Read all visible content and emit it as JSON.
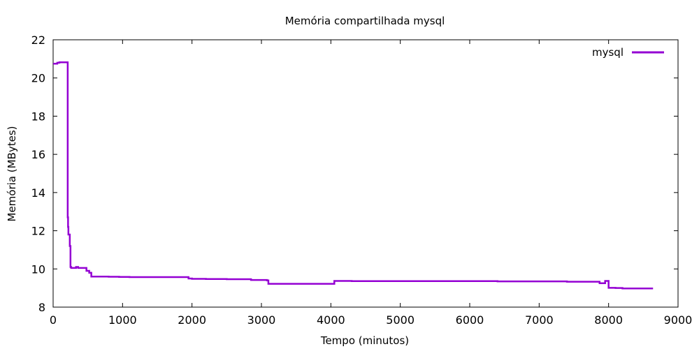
{
  "chart_data": {
    "type": "line",
    "title": "Memória compartilhada mysql",
    "xlabel": "Tempo (minutos)",
    "ylabel": "Memória (MBytes)",
    "xlim": [
      0,
      9000
    ],
    "ylim": [
      8,
      22
    ],
    "xticks": [
      0,
      1000,
      2000,
      3000,
      4000,
      5000,
      6000,
      7000,
      8000,
      9000
    ],
    "yticks": [
      8,
      10,
      12,
      14,
      16,
      18,
      20,
      22
    ],
    "grid": false,
    "legend_position": "top-right",
    "series": [
      {
        "name": "mysql",
        "color": "#9400d3",
        "step": true,
        "x": [
          0,
          30,
          60,
          90,
          120,
          150,
          200,
          210,
          215,
          220,
          225,
          230,
          240,
          250,
          260,
          270,
          330,
          360,
          400,
          480,
          520,
          550,
          600,
          800,
          950,
          1100,
          1500,
          1900,
          1950,
          2000,
          2200,
          2500,
          2800,
          2850,
          3080,
          3100,
          3500,
          4000,
          4050,
          4300,
          5000,
          6000,
          6400,
          7000,
          7350,
          7400,
          7800,
          7870,
          7950,
          8000,
          8100,
          8200,
          8300,
          8640
        ],
        "y": [
          20.75,
          20.75,
          20.8,
          20.82,
          20.82,
          20.82,
          20.82,
          12.7,
          12.2,
          11.8,
          11.8,
          11.8,
          11.2,
          10.1,
          10.05,
          10.05,
          10.1,
          10.05,
          10.05,
          9.9,
          9.8,
          9.6,
          9.6,
          9.59,
          9.58,
          9.57,
          9.57,
          9.57,
          9.5,
          9.48,
          9.47,
          9.46,
          9.46,
          9.42,
          9.4,
          9.22,
          9.22,
          9.22,
          9.37,
          9.36,
          9.36,
          9.36,
          9.35,
          9.35,
          9.35,
          9.33,
          9.33,
          9.25,
          9.37,
          9.01,
          9.0,
          8.98,
          8.98,
          8.98
        ]
      }
    ]
  }
}
